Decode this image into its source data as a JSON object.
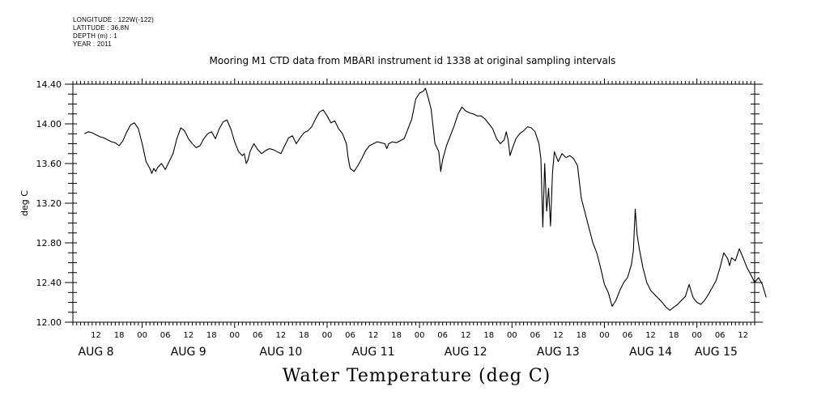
{
  "metadata": {
    "longitude": "LONGITUDE : 122W(-122)",
    "latitude": "LATITUDE : 36.8N",
    "depth": "DEPTH (m) : 1",
    "year": "YEAR : 2011"
  },
  "chart_data": {
    "type": "line",
    "title": "Mooring M1 CTD data from MBARI instrument id 1338 at original sampling intervals",
    "bottom_title": "Water Temperature (deg C)",
    "ylabel": "deg C",
    "xlabel": "",
    "ylim": [
      12.0,
      14.4
    ],
    "y_ticks": [
      "12.00",
      "12.40",
      "12.80",
      "13.20",
      "13.60",
      "14.00",
      "14.40"
    ],
    "xlim_hours": [
      6,
      183
    ],
    "x_hour_ticks": [
      {
        "h": 12,
        "label": "12"
      },
      {
        "h": 18,
        "label": "18"
      },
      {
        "h": 24,
        "label": "00"
      },
      {
        "h": 30,
        "label": "06"
      },
      {
        "h": 36,
        "label": "12"
      },
      {
        "h": 42,
        "label": "18"
      },
      {
        "h": 48,
        "label": "00"
      },
      {
        "h": 54,
        "label": "06"
      },
      {
        "h": 60,
        "label": "12"
      },
      {
        "h": 66,
        "label": "18"
      },
      {
        "h": 72,
        "label": "00"
      },
      {
        "h": 78,
        "label": "06"
      },
      {
        "h": 84,
        "label": "12"
      },
      {
        "h": 90,
        "label": "18"
      },
      {
        "h": 96,
        "label": "00"
      },
      {
        "h": 102,
        "label": "06"
      },
      {
        "h": 108,
        "label": "12"
      },
      {
        "h": 114,
        "label": "18"
      },
      {
        "h": 120,
        "label": "00"
      },
      {
        "h": 126,
        "label": "06"
      },
      {
        "h": 132,
        "label": "12"
      },
      {
        "h": 138,
        "label": "18"
      },
      {
        "h": 144,
        "label": "00"
      },
      {
        "h": 150,
        "label": "06"
      },
      {
        "h": 156,
        "label": "12"
      },
      {
        "h": 162,
        "label": "18"
      },
      {
        "h": 168,
        "label": "00"
      },
      {
        "h": 174,
        "label": "06"
      },
      {
        "h": 180,
        "label": "12"
      }
    ],
    "day_labels": [
      {
        "h": 12,
        "label": "AUG  8"
      },
      {
        "h": 36,
        "label": "AUG  9"
      },
      {
        "h": 60,
        "label": "AUG 10"
      },
      {
        "h": 84,
        "label": "AUG 11"
      },
      {
        "h": 108,
        "label": "AUG 12"
      },
      {
        "h": 132,
        "label": "AUG 13"
      },
      {
        "h": 156,
        "label": "AUG 14"
      },
      {
        "h": 173,
        "label": "AUG 15"
      }
    ],
    "grid": false,
    "series": [
      {
        "points": [
          [
            9,
            13.9
          ],
          [
            10,
            13.92
          ],
          [
            11,
            13.91
          ],
          [
            12,
            13.89
          ],
          [
            13,
            13.87
          ],
          [
            14,
            13.86
          ],
          [
            15,
            13.84
          ],
          [
            16,
            13.82
          ],
          [
            17,
            13.81
          ],
          [
            18,
            13.78
          ],
          [
            19,
            13.83
          ],
          [
            20,
            13.92
          ],
          [
            21,
            13.99
          ],
          [
            22,
            14.01
          ],
          [
            23,
            13.95
          ],
          [
            24,
            13.8
          ],
          [
            25,
            13.62
          ],
          [
            26,
            13.55
          ],
          [
            26.5,
            13.5
          ],
          [
            27,
            13.55
          ],
          [
            27.5,
            13.52
          ],
          [
            28,
            13.56
          ],
          [
            29,
            13.6
          ],
          [
            30,
            13.54
          ],
          [
            31,
            13.62
          ],
          [
            32,
            13.7
          ],
          [
            33,
            13.85
          ],
          [
            34,
            13.96
          ],
          [
            35,
            13.93
          ],
          [
            36,
            13.85
          ],
          [
            37,
            13.8
          ],
          [
            38,
            13.76
          ],
          [
            39,
            13.78
          ],
          [
            40,
            13.85
          ],
          [
            41,
            13.9
          ],
          [
            42,
            13.92
          ],
          [
            43,
            13.85
          ],
          [
            44,
            13.95
          ],
          [
            45,
            14.02
          ],
          [
            46,
            14.04
          ],
          [
            47,
            13.95
          ],
          [
            48,
            13.82
          ],
          [
            49,
            13.72
          ],
          [
            50,
            13.68
          ],
          [
            50.5,
            13.7
          ],
          [
            51,
            13.6
          ],
          [
            51.5,
            13.64
          ],
          [
            52,
            13.72
          ],
          [
            53,
            13.8
          ],
          [
            54,
            13.74
          ],
          [
            55,
            13.7
          ],
          [
            56,
            13.73
          ],
          [
            57,
            13.75
          ],
          [
            58,
            13.74
          ],
          [
            59,
            13.72
          ],
          [
            60,
            13.7
          ],
          [
            61,
            13.78
          ],
          [
            62,
            13.86
          ],
          [
            63,
            13.88
          ],
          [
            64,
            13.8
          ],
          [
            65,
            13.86
          ],
          [
            66,
            13.91
          ],
          [
            67,
            13.93
          ],
          [
            68,
            13.97
          ],
          [
            69,
            14.05
          ],
          [
            70,
            14.12
          ],
          [
            71,
            14.14
          ],
          [
            72,
            14.08
          ],
          [
            73,
            14.01
          ],
          [
            74,
            14.03
          ],
          [
            75,
            13.95
          ],
          [
            76,
            13.9
          ],
          [
            77,
            13.8
          ],
          [
            77.5,
            13.65
          ],
          [
            78,
            13.55
          ],
          [
            79,
            13.52
          ],
          [
            80,
            13.58
          ],
          [
            81,
            13.65
          ],
          [
            82,
            13.73
          ],
          [
            83,
            13.78
          ],
          [
            84,
            13.8
          ],
          [
            85,
            13.82
          ],
          [
            86,
            13.81
          ],
          [
            87,
            13.8
          ],
          [
            87.5,
            13.75
          ],
          [
            88,
            13.8
          ],
          [
            89,
            13.82
          ],
          [
            90,
            13.81
          ],
          [
            91,
            13.83
          ],
          [
            92,
            13.85
          ],
          [
            93,
            13.95
          ],
          [
            94,
            14.05
          ],
          [
            95,
            14.25
          ],
          [
            96,
            14.31
          ],
          [
            97,
            14.33
          ],
          [
            97.5,
            14.36
          ],
          [
            98,
            14.3
          ],
          [
            99,
            14.15
          ],
          [
            100,
            13.8
          ],
          [
            101,
            13.72
          ],
          [
            101.5,
            13.52
          ],
          [
            102,
            13.64
          ],
          [
            103,
            13.78
          ],
          [
            104,
            13.88
          ],
          [
            105,
            13.98
          ],
          [
            106,
            14.1
          ],
          [
            107,
            14.17
          ],
          [
            108,
            14.13
          ],
          [
            109,
            14.11
          ],
          [
            110,
            14.1
          ],
          [
            111,
            14.08
          ],
          [
            112,
            14.08
          ],
          [
            113,
            14.05
          ],
          [
            114,
            14.0
          ],
          [
            115,
            13.95
          ],
          [
            116,
            13.85
          ],
          [
            117,
            13.8
          ],
          [
            118,
            13.84
          ],
          [
            118.5,
            13.92
          ],
          [
            119,
            13.84
          ],
          [
            119.5,
            13.68
          ],
          [
            120,
            13.74
          ],
          [
            121,
            13.85
          ],
          [
            122,
            13.9
          ],
          [
            123,
            13.93
          ],
          [
            124,
            13.97
          ],
          [
            125,
            13.96
          ],
          [
            126,
            13.92
          ],
          [
            127,
            13.8
          ],
          [
            127.5,
            13.65
          ],
          [
            128,
            12.96
          ],
          [
            128.5,
            13.6
          ],
          [
            129,
            13.12
          ],
          [
            129.5,
            13.35
          ],
          [
            130,
            12.97
          ],
          [
            130.5,
            13.5
          ],
          [
            131,
            13.72
          ],
          [
            132,
            13.62
          ],
          [
            133,
            13.7
          ],
          [
            134,
            13.66
          ],
          [
            135,
            13.68
          ],
          [
            136,
            13.65
          ],
          [
            137,
            13.58
          ],
          [
            138,
            13.25
          ],
          [
            139,
            13.1
          ],
          [
            140,
            12.95
          ],
          [
            141,
            12.8
          ],
          [
            142,
            12.7
          ],
          [
            143,
            12.55
          ],
          [
            144,
            12.38
          ],
          [
            145,
            12.3
          ],
          [
            146,
            12.16
          ],
          [
            147,
            12.22
          ],
          [
            148,
            12.32
          ],
          [
            149,
            12.4
          ],
          [
            150,
            12.45
          ],
          [
            151,
            12.58
          ],
          [
            151.5,
            12.72
          ],
          [
            152,
            13.14
          ],
          [
            152.5,
            12.88
          ],
          [
            153,
            12.75
          ],
          [
            154,
            12.55
          ],
          [
            155,
            12.4
          ],
          [
            156,
            12.32
          ],
          [
            157,
            12.28
          ],
          [
            158,
            12.24
          ],
          [
            159,
            12.2
          ],
          [
            160,
            12.15
          ],
          [
            161,
            12.12
          ],
          [
            162,
            12.15
          ],
          [
            163,
            12.18
          ],
          [
            164,
            12.22
          ],
          [
            165,
            12.26
          ],
          [
            166,
            12.38
          ],
          [
            167,
            12.25
          ],
          [
            168,
            12.2
          ],
          [
            169,
            12.18
          ],
          [
            170,
            12.22
          ],
          [
            171,
            12.28
          ],
          [
            172,
            12.35
          ],
          [
            173,
            12.42
          ],
          [
            174,
            12.55
          ],
          [
            175,
            12.7
          ],
          [
            176,
            12.64
          ],
          [
            176.5,
            12.57
          ],
          [
            177,
            12.65
          ],
          [
            178,
            12.62
          ],
          [
            179,
            12.74
          ],
          [
            180,
            12.65
          ],
          [
            181,
            12.55
          ],
          [
            182,
            12.48
          ],
          [
            183,
            12.4
          ],
          [
            184,
            12.45
          ],
          [
            185,
            12.38
          ],
          [
            186,
            12.25
          ]
        ]
      }
    ]
  }
}
